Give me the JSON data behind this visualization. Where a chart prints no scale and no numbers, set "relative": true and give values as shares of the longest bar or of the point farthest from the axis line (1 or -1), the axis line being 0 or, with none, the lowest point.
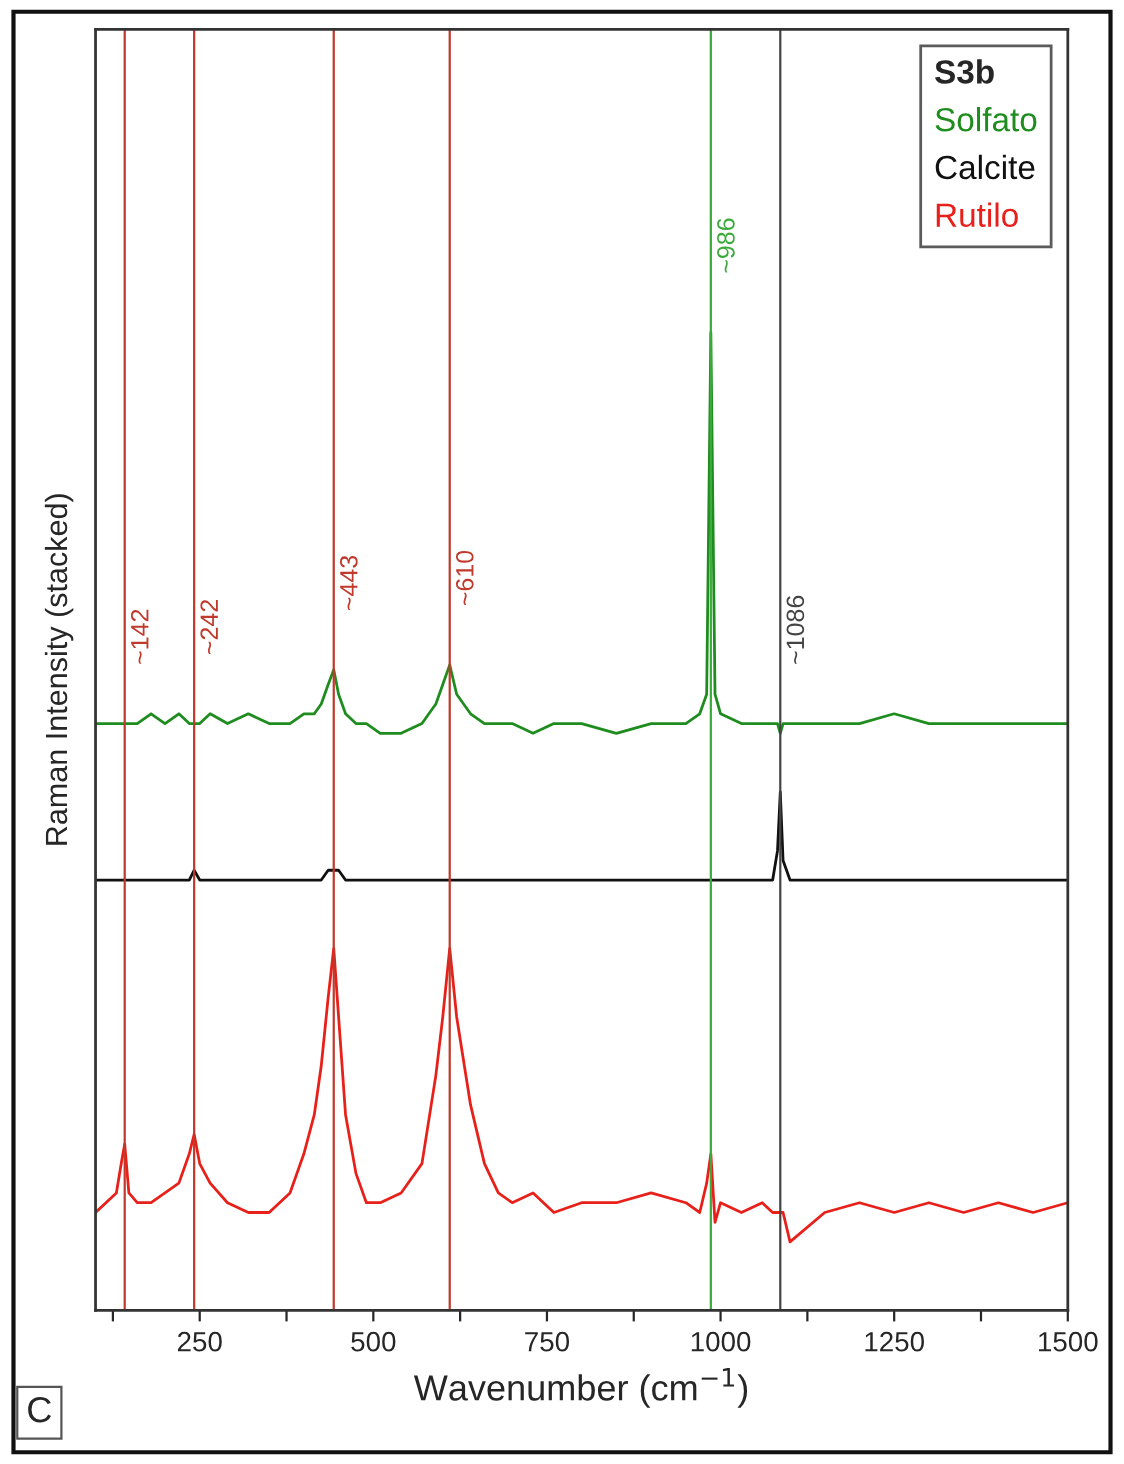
{
  "chart_data": {
    "type": "line",
    "relative": true,
    "xlabel": "Wavenumber (cm$^{−1}$)",
    "ylabel": "Raman Intensity (stacked)",
    "legend_title": "S3b",
    "legend": "top right",
    "tick_labels": "x",
    "grid": false,
    "x": [
      100,
      115,
      130,
      137,
      142,
      148,
      160,
      180,
      200,
      220,
      235,
      242,
      250,
      265,
      290,
      320,
      350,
      380,
      400,
      415,
      425,
      435,
      443,
      450,
      460,
      475,
      490,
      510,
      540,
      570,
      590,
      600,
      610,
      620,
      640,
      660,
      680,
      700,
      730,
      760,
      800,
      850,
      900,
      950,
      970,
      980,
      986,
      992,
      1000,
      1030,
      1060,
      1075,
      1082,
      1086,
      1090,
      1100,
      1150,
      1200,
      1250,
      1300,
      1350,
      1400,
      1450,
      1500
    ],
    "xlim": [
      100,
      1500
    ],
    "xticks": [
      {
        "value": 125,
        "label": null
      },
      250,
      {
        "value": 375,
        "label": null
      },
      500,
      {
        "value": 625,
        "label": null
      },
      750,
      {
        "value": 875,
        "label": null
      },
      1000,
      {
        "value": 1125,
        "label": null
      },
      1250,
      {
        "value": 1375,
        "label": null
      },
      1500
    ],
    "series": [
      {
        "name": "Solfato",
        "color": "#1e8c1e",
        "values": [
          0.6,
          0.6,
          0.6,
          0.6,
          0.6,
          0.6,
          0.6,
          0.61,
          0.6,
          0.61,
          0.6,
          0.6,
          0.6,
          0.61,
          0.6,
          0.61,
          0.6,
          0.6,
          0.61,
          0.61,
          0.62,
          0.64,
          0.655,
          0.63,
          0.61,
          0.6,
          0.6,
          0.59,
          0.59,
          0.6,
          0.62,
          0.64,
          0.66,
          0.63,
          0.61,
          0.6,
          0.6,
          0.6,
          0.59,
          0.6,
          0.6,
          0.59,
          0.6,
          0.6,
          0.61,
          0.63,
          1.0,
          0.63,
          0.61,
          0.6,
          0.6,
          0.6,
          0.6,
          0.59,
          0.6,
          0.6,
          0.6,
          0.6,
          0.61,
          0.6,
          0.6,
          0.6,
          0.6,
          0.6
        ]
      },
      {
        "name": "Calcite",
        "color": "#111111",
        "values": [
          0.44,
          0.44,
          0.44,
          0.44,
          0.44,
          0.44,
          0.44,
          0.44,
          0.44,
          0.44,
          0.44,
          0.45,
          0.44,
          0.44,
          0.44,
          0.44,
          0.44,
          0.44,
          0.44,
          0.44,
          0.44,
          0.45,
          0.45,
          0.45,
          0.44,
          0.44,
          0.44,
          0.44,
          0.44,
          0.44,
          0.44,
          0.44,
          0.44,
          0.44,
          0.44,
          0.44,
          0.44,
          0.44,
          0.44,
          0.44,
          0.44,
          0.44,
          0.44,
          0.44,
          0.44,
          0.44,
          0.44,
          0.44,
          0.44,
          0.44,
          0.44,
          0.44,
          0.47,
          0.53,
          0.46,
          0.44,
          0.44,
          0.44,
          0.44,
          0.44,
          0.44,
          0.44,
          0.44,
          0.44
        ]
      },
      {
        "name": "Rutilo",
        "color": "#e8201a",
        "values": [
          0.1,
          0.11,
          0.12,
          0.15,
          0.17,
          0.12,
          0.11,
          0.11,
          0.12,
          0.13,
          0.16,
          0.18,
          0.15,
          0.13,
          0.11,
          0.1,
          0.1,
          0.12,
          0.16,
          0.2,
          0.25,
          0.32,
          0.37,
          0.3,
          0.2,
          0.14,
          0.11,
          0.11,
          0.12,
          0.15,
          0.24,
          0.3,
          0.37,
          0.3,
          0.21,
          0.15,
          0.12,
          0.11,
          0.12,
          0.1,
          0.11,
          0.11,
          0.12,
          0.11,
          0.1,
          0.13,
          0.16,
          0.09,
          0.11,
          0.1,
          0.11,
          0.1,
          0.1,
          0.1,
          0.1,
          0.07,
          0.1,
          0.11,
          0.1,
          0.11,
          0.1,
          0.11,
          0.1,
          0.11
        ]
      }
    ],
    "ref_lines": [
      {
        "axis": "x",
        "value": 142,
        "label": "~142",
        "color": "#c0392b"
      },
      {
        "axis": "x",
        "value": 242,
        "label": "~242",
        "color": "#c0392b"
      },
      {
        "axis": "x",
        "value": 443,
        "label": "~443",
        "color": "#c0392b"
      },
      {
        "axis": "x",
        "value": 610,
        "label": "~610",
        "color": "#c0392b"
      },
      {
        "axis": "x",
        "value": 986,
        "label": "~986",
        "color": "#3aaa3a"
      },
      {
        "axis": "x",
        "value": 1086,
        "label": "~1086",
        "color": "#444444"
      }
    ],
    "annotations": [
      "C"
    ]
  }
}
